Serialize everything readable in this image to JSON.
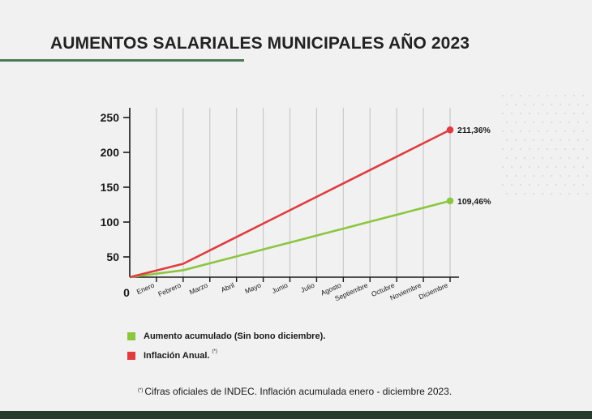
{
  "page": {
    "title": "AUMENTOS SALARIALES MUNICIPALES AÑO 2023",
    "footnote_mark": "(*)",
    "footnote_text": "Cifras oficiales de INDEC. Inflación acumulada enero - diciembre 2023."
  },
  "colors": {
    "accent_green": "#4a7a55",
    "bottom_bar": "#263d2e",
    "series_green": "#8cc63f",
    "series_red": "#e03c3f"
  },
  "chart_data": {
    "type": "line",
    "title": "AUMENTOS SALARIALES MUNICIPALES AÑO 2023",
    "xlabel": "",
    "ylabel": "",
    "origin_label": "0",
    "categories": [
      "Enero",
      "Febrero",
      "Marzo",
      "Abril",
      "Mayo",
      "Junio",
      "Julio",
      "Agosto",
      "Septiembre",
      "Octubre",
      "Noviembre",
      "Diciembre"
    ],
    "yticks": [
      50,
      100,
      150,
      200,
      250
    ],
    "ylim": [
      20,
      260
    ],
    "grid": "vertical",
    "legend": "bottom-left",
    "series": [
      {
        "name": "Aumento acumulado (Sin bono diciembre).",
        "color": "#8cc63f",
        "values": [
          0,
          9.95,
          19.9,
          29.85,
          39.8,
          49.75,
          59.7,
          69.65,
          79.6,
          89.55,
          99.5,
          109.46
        ],
        "end_label": "109,46%"
      },
      {
        "name": "Inflación Anual.",
        "name_mark": "(*)",
        "color": "#e03c3f",
        "values": [
          0,
          19.21,
          38.43,
          57.64,
          76.86,
          96.07,
          115.29,
          134.5,
          153.72,
          172.93,
          192.15,
          211.36
        ],
        "end_label": "211,36%"
      }
    ]
  }
}
